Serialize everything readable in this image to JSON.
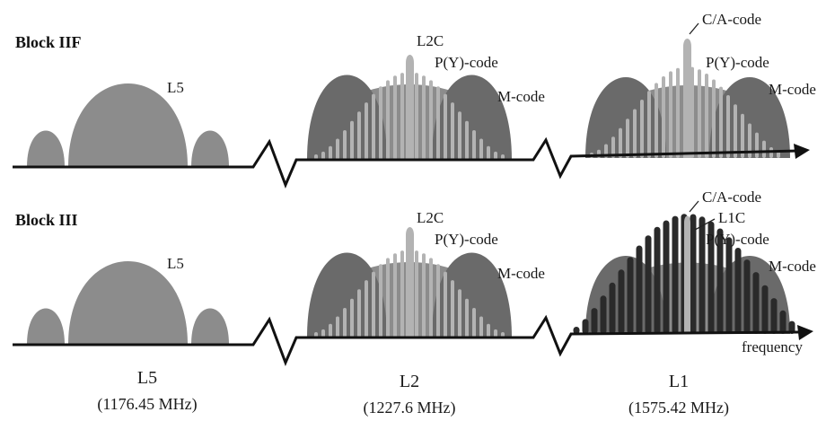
{
  "rows": [
    {
      "block_label": "Block IIF",
      "l5_label": "L5",
      "l2": {
        "l2c": "L2C",
        "py": "P(Y)-code",
        "m": "M-code"
      },
      "l1": {
        "ca": "C/A-code",
        "py": "P(Y)-code",
        "m": "M-code"
      }
    },
    {
      "block_label": "Block III",
      "l5_label": "L5",
      "l2": {
        "l2c": "L2C",
        "py": "P(Y)-code",
        "m": "M-code"
      },
      "l1": {
        "ca": "C/A-code",
        "l1c": "L1C",
        "py": "P(Y)-code",
        "m": "M-code"
      }
    }
  ],
  "axis_label": "frequency",
  "bands": [
    {
      "name": "L5",
      "freq": "(1176.45 MHz)"
    },
    {
      "name": "L2",
      "freq": "(1227.6 MHz)"
    },
    {
      "name": "L1",
      "freq": "(1575.42 MHz)"
    }
  ],
  "colors": {
    "l5": "#8c8c8c",
    "py": "#8c8c8c",
    "m": "#6a6a6a",
    "civil": "#b3b3b3",
    "l1c": "#2a2a2a",
    "axis": "#111111"
  }
}
